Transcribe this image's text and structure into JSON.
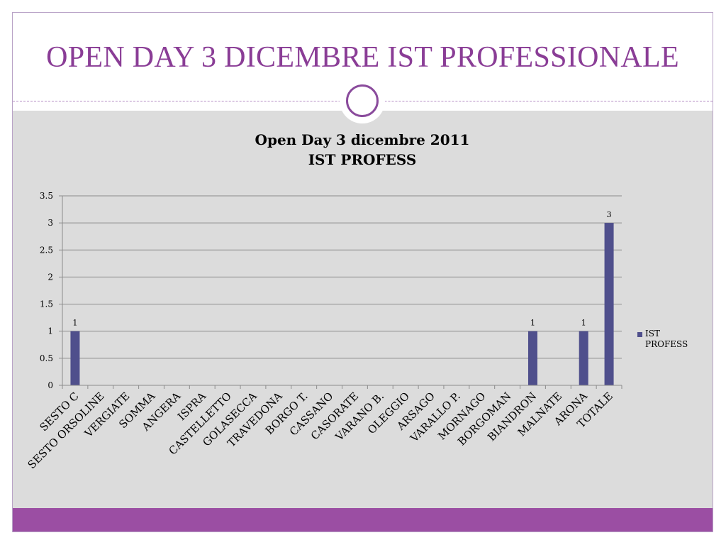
{
  "slide": {
    "title": "OPEN DAY 3 DICEMBRE IST PROFESSIONALE"
  },
  "colors": {
    "title": "#8a3d96",
    "accent_bar": "#9b4ea3",
    "content_bg": "#dcdcdc",
    "series": "#4f4f8c"
  },
  "chart_data": {
    "type": "bar",
    "title": "Open Day 3 dicembre 2011",
    "subtitle": "IST PROFESS",
    "categories": [
      "SESTO C",
      "SESTO ORSOLINE",
      "VERGIATE",
      "SOMMA",
      "ANGERA",
      "ISPRA",
      "CASTELLETTO",
      "GOLASECCA",
      "TRAVEDONA",
      "BORGO T.",
      "CASSANO",
      "CASORATE",
      "VARANO B.",
      "OLEGGIO",
      "ARSAGO",
      "VARALLO P.",
      "MORNAGO",
      "BORGOMAN",
      "BIANDRON",
      "MALNATE",
      "ARONA",
      "TOTALE"
    ],
    "series": [
      {
        "name": "IST PROFESS",
        "values": [
          1,
          null,
          null,
          null,
          null,
          null,
          null,
          null,
          null,
          null,
          null,
          null,
          null,
          null,
          null,
          null,
          null,
          null,
          1,
          null,
          1,
          3
        ]
      }
    ],
    "data_labels": [
      "1",
      "",
      "",
      "",
      "",
      "",
      "",
      "",
      "",
      "",
      "",
      "",
      "",
      "",
      "",
      "",
      "",
      "",
      "1",
      "",
      "1",
      "3"
    ],
    "ylim": [
      0,
      3.5
    ],
    "yticks": [
      "0",
      "0.5",
      "1",
      "1.5",
      "2",
      "2.5",
      "3",
      "3.5"
    ],
    "grid": true,
    "legend": "right",
    "xlabel": "",
    "ylabel": ""
  }
}
